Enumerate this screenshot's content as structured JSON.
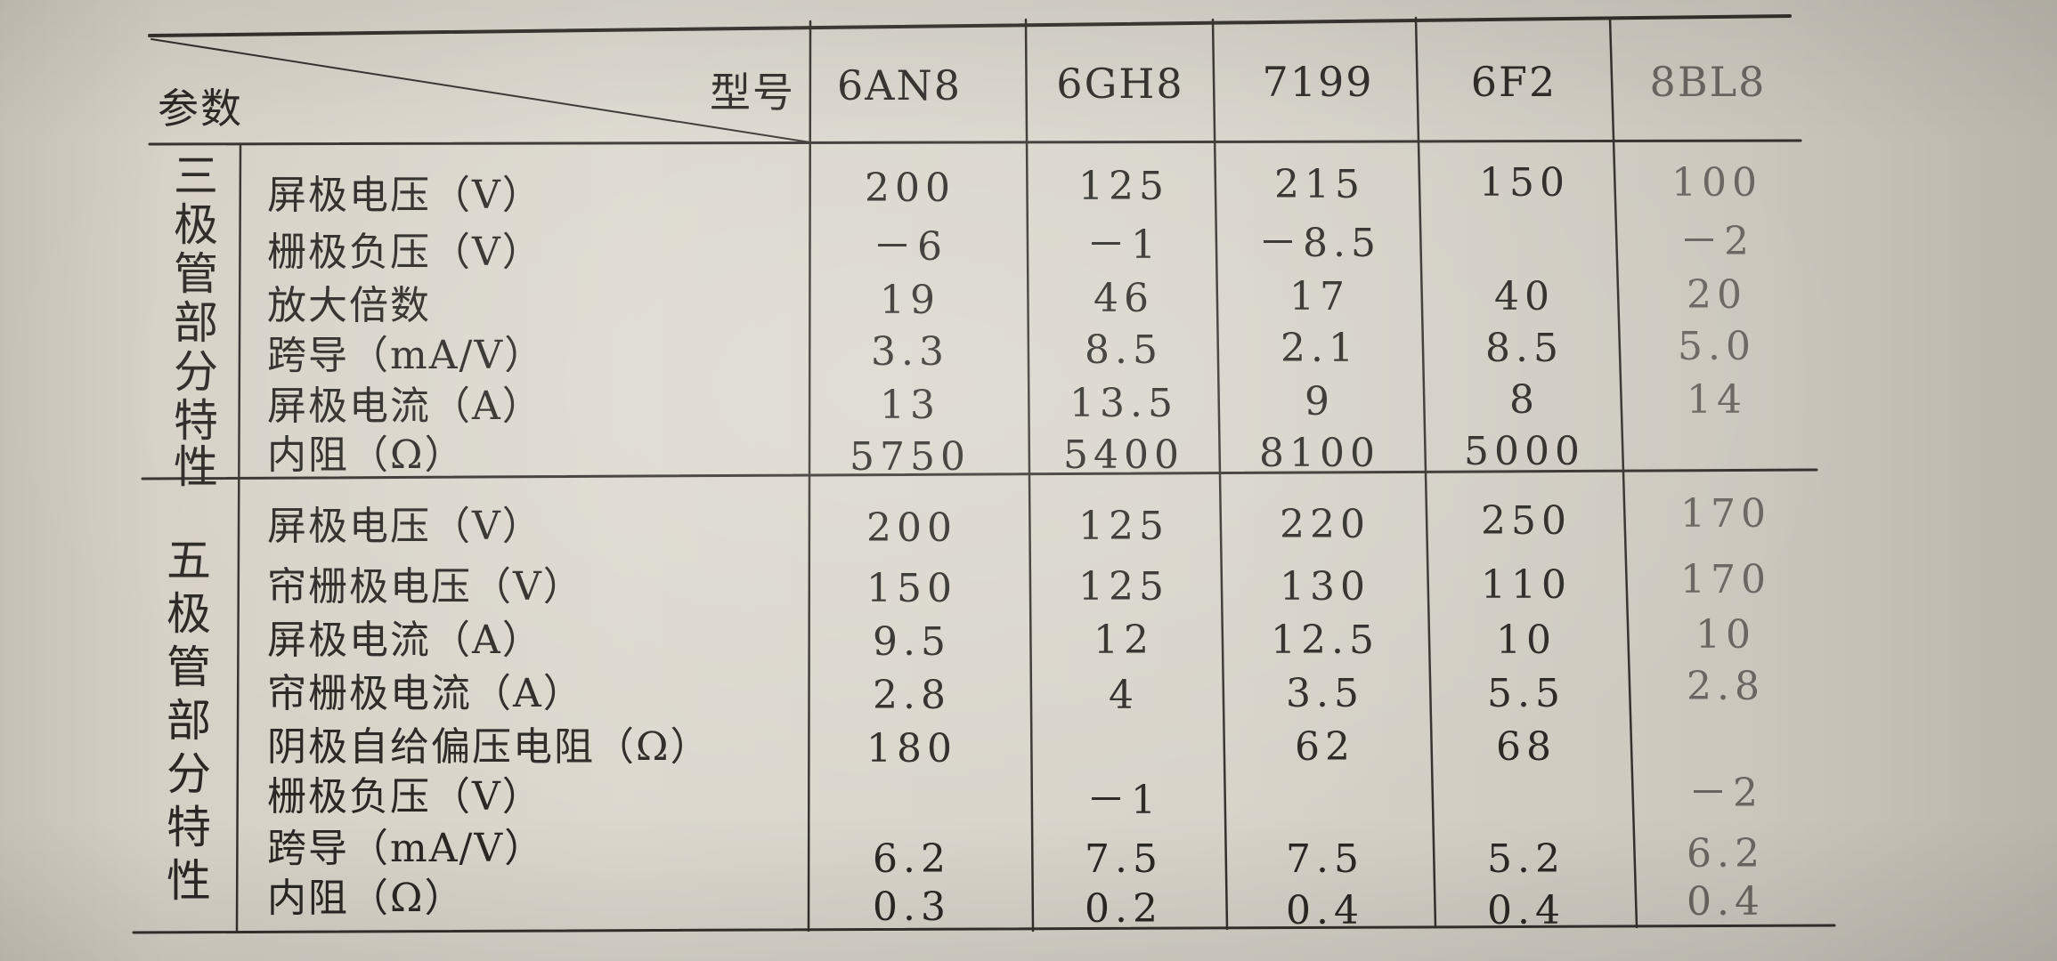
{
  "table": {
    "header": {
      "param_label": "参数",
      "model_label": "型号"
    },
    "models": [
      "6AN8",
      "6GH8",
      "7199",
      "6F2",
      "8BL8"
    ],
    "sections": [
      {
        "title_chars": [
          "三",
          "极",
          "管",
          "部",
          "分",
          "特",
          "性"
        ],
        "rows": [
          {
            "label": "屏极电压（V）",
            "values": [
              "200",
              "125",
              "215",
              "150",
              "100"
            ]
          },
          {
            "label": "栅极负压（V）",
            "values": [
              "－6",
              "－1",
              "－8.5",
              "",
              "－2"
            ]
          },
          {
            "label": "放大倍数",
            "values": [
              "19",
              "46",
              "17",
              "40",
              "20"
            ]
          },
          {
            "label": "跨导（mA/V）",
            "values": [
              "3.3",
              "8.5",
              "2.1",
              "8.5",
              "5.0"
            ]
          },
          {
            "label": "屏极电流（A）",
            "values": [
              "13",
              "13.5",
              "9",
              "8",
              "14"
            ]
          },
          {
            "label": "内阻（Ω）",
            "values": [
              "5750",
              "5400",
              "8100",
              "5000",
              ""
            ]
          }
        ]
      },
      {
        "title_chars": [
          "五",
          "极",
          "管",
          "部",
          "分",
          "特",
          "性"
        ],
        "rows": [
          {
            "label": "屏极电压（V）",
            "values": [
              "200",
              "125",
              "220",
              "250",
              "170"
            ]
          },
          {
            "label": "帘栅极电压（V）",
            "values": [
              "150",
              "125",
              "130",
              "110",
              "170"
            ]
          },
          {
            "label": "屏极电流（A）",
            "values": [
              "9.5",
              "12",
              "12.5",
              "10",
              "10"
            ]
          },
          {
            "label": "帘栅极电流（A）",
            "values": [
              "2.8",
              "4",
              "3.5",
              "5.5",
              "2.8"
            ]
          },
          {
            "label": "阴极自给偏压电阻（Ω）",
            "values": [
              "180",
              "",
              "62",
              "68",
              ""
            ]
          },
          {
            "label": "栅极负压（V）",
            "values": [
              "",
              "－1",
              "",
              "",
              "－2"
            ]
          },
          {
            "label": "跨导（mA/V）",
            "values": [
              "6.2",
              "7.5",
              "7.5",
              "5.2",
              "6.2"
            ]
          },
          {
            "label": "内阻（Ω）",
            "values": [
              "0.3",
              "0.2",
              "0.4",
              "0.4",
              "0.4"
            ]
          }
        ]
      }
    ]
  }
}
